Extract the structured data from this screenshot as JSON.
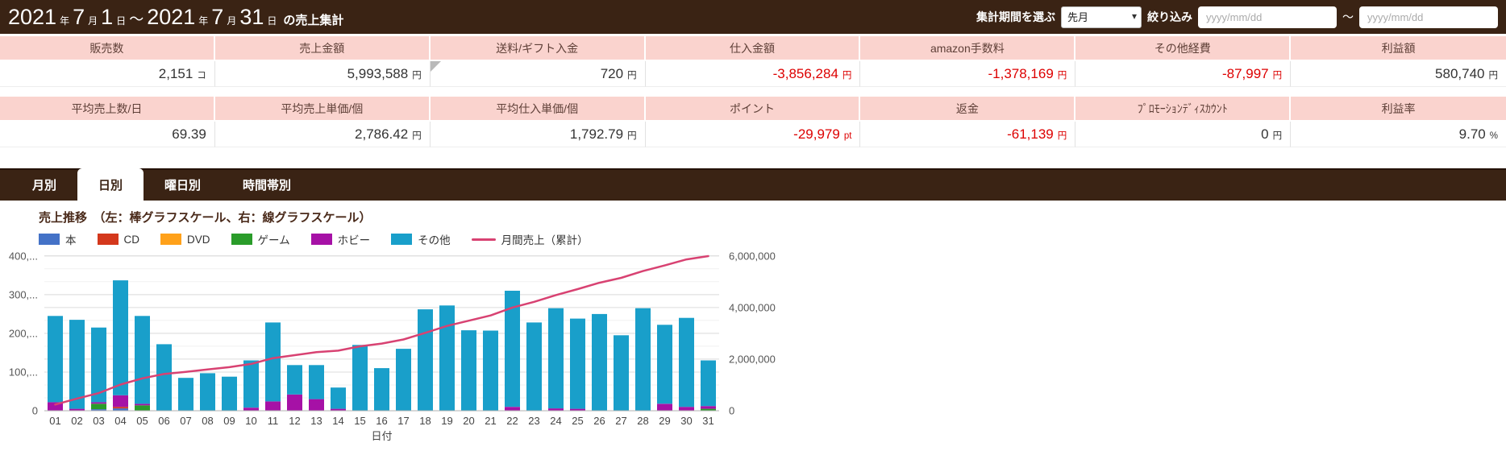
{
  "header": {
    "title_segments": [
      {
        "text": "2021",
        "size": "big"
      },
      {
        "text": "年",
        "size": "small"
      },
      {
        "text": "7",
        "size": "big"
      },
      {
        "text": "月",
        "size": "small"
      },
      {
        "text": "1",
        "size": "big"
      },
      {
        "text": "日",
        "size": "small"
      },
      {
        "text": "～",
        "size": "mid"
      },
      {
        "text": "2021",
        "size": "big"
      },
      {
        "text": "年",
        "size": "small"
      },
      {
        "text": "7",
        "size": "big"
      },
      {
        "text": "月",
        "size": "small"
      },
      {
        "text": "31",
        "size": "big"
      },
      {
        "text": "日",
        "size": "small"
      },
      {
        "text": "の売上集計",
        "size": "tail"
      }
    ],
    "period_label": "集計期間を選ぶ",
    "period_value": "先月",
    "chevron_glyph": "▾",
    "filter_label": "絞り込み",
    "date_from_placeholder": "yyyy/mm/dd",
    "date_to_placeholder": "yyyy/mm/dd",
    "range_separator": "～"
  },
  "summary_table": {
    "groups": [
      {
        "cells": [
          {
            "label": "販売数",
            "value": "2,151",
            "unit": "コ",
            "negative": false
          },
          {
            "label": "売上金額",
            "value": "5,993,588",
            "unit": "円",
            "negative": false
          },
          {
            "label": "送料/ギフト入金",
            "value": "720",
            "unit": "円",
            "negative": false,
            "corner": true
          },
          {
            "label": "仕入金額",
            "value": "-3,856,284",
            "unit": "円",
            "negative": true
          },
          {
            "label": "amazon手数料",
            "value": "-1,378,169",
            "unit": "円",
            "negative": true
          },
          {
            "label": "その他経費",
            "value": "-87,997",
            "unit": "円",
            "negative": true
          },
          {
            "label": "利益額",
            "value": "580,740",
            "unit": "円",
            "negative": false
          }
        ]
      },
      {
        "cells": [
          {
            "label": "平均売上数/日",
            "value": "69.39",
            "unit": "",
            "negative": false
          },
          {
            "label": "平均売上単価/個",
            "value": "2,786.42",
            "unit": "円",
            "negative": false
          },
          {
            "label": "平均仕入単価/個",
            "value": "1,792.79",
            "unit": "円",
            "negative": false
          },
          {
            "label": "ポイント",
            "value": "-29,979",
            "unit": "pt",
            "negative": true
          },
          {
            "label": "返金",
            "value": "-61,139",
            "unit": "円",
            "negative": true
          },
          {
            "label": "ﾌﾟﾛﾓｰｼｮﾝﾃﾞｨｽｶｳﾝﾄ",
            "value": "0",
            "unit": "円",
            "negative": false
          },
          {
            "label": "利益率",
            "value": "9.70",
            "unit": "%",
            "negative": false
          }
        ]
      }
    ]
  },
  "tabs": [
    {
      "label": "月別",
      "id": "monthly",
      "active": false
    },
    {
      "label": "日別",
      "id": "daily",
      "active": true
    },
    {
      "label": "曜日別",
      "id": "weekday",
      "active": false
    },
    {
      "label": "時間帯別",
      "id": "hourly",
      "active": false
    }
  ],
  "chart": {
    "title": "売上推移　（左：棒グラフスケール、右：線グラフスケール）"
  },
  "chart_data": {
    "type": "bar",
    "subtype": "stacked-bar-with-line",
    "categories": [
      "01",
      "02",
      "03",
      "04",
      "05",
      "06",
      "07",
      "08",
      "09",
      "10",
      "11",
      "12",
      "13",
      "14",
      "15",
      "16",
      "17",
      "18",
      "19",
      "20",
      "21",
      "22",
      "23",
      "24",
      "25",
      "26",
      "27",
      "28",
      "29",
      "30",
      "31"
    ],
    "xlabel": "日付",
    "series": [
      {
        "name": "本",
        "color": "#4472c7",
        "values": [
          0,
          0,
          4000,
          6000,
          0,
          0,
          0,
          0,
          0,
          0,
          0,
          0,
          0,
          0,
          0,
          0,
          0,
          0,
          0,
          0,
          0,
          0,
          0,
          0,
          0,
          0,
          0,
          0,
          0,
          0,
          0
        ]
      },
      {
        "name": "CD",
        "color": "#d4381c",
        "values": [
          0,
          0,
          0,
          4000,
          0,
          0,
          0,
          0,
          0,
          0,
          0,
          0,
          0,
          0,
          0,
          0,
          0,
          0,
          0,
          0,
          0,
          0,
          0,
          0,
          0,
          0,
          0,
          0,
          0,
          0,
          0
        ]
      },
      {
        "name": "DVD",
        "color": "#ffa11a",
        "values": [
          0,
          0,
          0,
          0,
          0,
          0,
          0,
          0,
          0,
          0,
          0,
          0,
          0,
          0,
          0,
          0,
          0,
          0,
          0,
          0,
          0,
          0,
          0,
          0,
          0,
          0,
          0,
          0,
          0,
          0,
          0
        ]
      },
      {
        "name": "ゲーム",
        "color": "#2a9c2a",
        "values": [
          0,
          0,
          14000,
          0,
          14000,
          0,
          0,
          0,
          0,
          0,
          0,
          0,
          0,
          0,
          0,
          0,
          0,
          0,
          0,
          0,
          0,
          0,
          0,
          0,
          0,
          0,
          0,
          0,
          0,
          0,
          5000
        ]
      },
      {
        "name": "ホビー",
        "color": "#a611a6",
        "values": [
          22000,
          5000,
          4000,
          30000,
          4000,
          0,
          0,
          0,
          0,
          8000,
          24000,
          42000,
          30000,
          5000,
          0,
          0,
          0,
          0,
          0,
          0,
          0,
          10000,
          0,
          6000,
          5000,
          0,
          0,
          0,
          18000,
          10000,
          7000
        ]
      },
      {
        "name": "その他",
        "color": "#199fca",
        "values": [
          223000,
          230000,
          193000,
          297000,
          227000,
          172000,
          85000,
          97000,
          88000,
          122000,
          204000,
          76000,
          88000,
          55000,
          170000,
          110000,
          160000,
          262000,
          272000,
          208000,
          207000,
          300000,
          228000,
          259000,
          233000,
          250000,
          195000,
          265000,
          204000,
          230000,
          118000
        ]
      }
    ],
    "line_series": {
      "name": "月間売上（累計）",
      "color": "#d84272",
      "axis": "right",
      "values": [
        240529,
        471240,
        682316,
        1013166,
        1253695,
        1422556,
        1506005,
        1601234,
        1687628,
        1815255,
        2039095,
        2154941,
        2270788,
        2329693,
        2496590,
        2604582,
        2761663,
        3018881,
        3285918,
        3490122,
        3693344,
        3997686,
        4221525,
        4481689,
        4715345,
        4960783,
        5152224,
        5412388,
        5630345,
        5865956,
        5993588
      ]
    },
    "left_axis": {
      "ticks": [
        0,
        100000,
        200000,
        300000,
        400000
      ],
      "tick_labels": [
        "0",
        "100,...",
        "200,...",
        "300,...",
        "400,..."
      ],
      "max": 410000
    },
    "right_axis": {
      "ticks": [
        0,
        2000000,
        4000000,
        6000000
      ],
      "tick_labels": [
        "0",
        "2,000,000",
        "4,000,000",
        "6,000,000"
      ],
      "max": 6150000,
      "minor_step": 500000
    },
    "grid": true,
    "legend_position": "top"
  }
}
